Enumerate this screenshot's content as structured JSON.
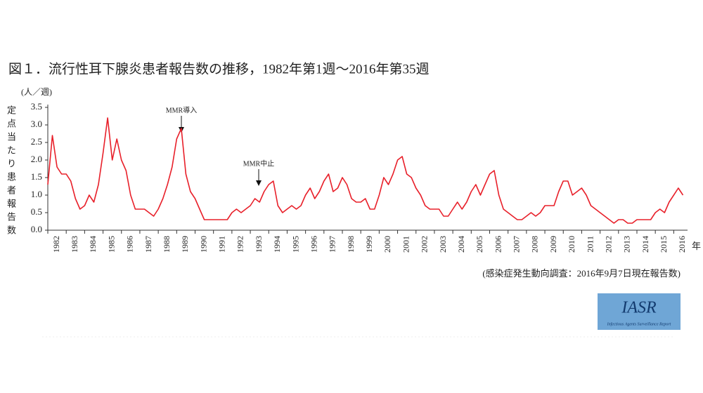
{
  "chart_data": {
    "type": "line",
    "title": "図１．流行性耳下腺炎患者報告数の推移，1982年第1週〜2016年第35週",
    "y_unit": "(人／週)",
    "y_label": "定点当たり患者報告数",
    "x_unit": "年",
    "source": "(感染症発生動向調査：2016年9月7日現在報告数)",
    "annotations": [
      "MMR導入",
      "MMR中止"
    ],
    "logo": "IASR",
    "logo_subtitle": "Infectious Agents Surveillance Report",
    "color": "#e8202a",
    "xlim": [
      1982,
      2016.75
    ],
    "xticks": [
      1982,
      1983,
      1984,
      1985,
      1986,
      1987,
      1988,
      1989,
      1990,
      1991,
      1992,
      1993,
      1994,
      1995,
      1996,
      1997,
      1998,
      1999,
      2000,
      2001,
      2002,
      2003,
      2004,
      2005,
      2006,
      2007,
      2008,
      2009,
      2010,
      2011,
      2012,
      2013,
      2014,
      2015,
      2016
    ],
    "ylim": [
      0,
      3.5
    ],
    "yticks": [
      {
        "value": 0,
        "label": "0.0"
      },
      0.5,
      {
        "value": 1,
        "label": "1.0"
      },
      1.5,
      {
        "value": 2,
        "label": "2.0"
      },
      2.5,
      {
        "value": 3,
        "label": "3.0"
      },
      3.5
    ],
    "x": [
      1982,
      1982.25,
      1982.5,
      1982.75,
      1983,
      1983.25,
      1983.5,
      1983.75,
      1984,
      1984.25,
      1984.5,
      1984.75,
      1985,
      1985.25,
      1985.5,
      1985.75,
      1986,
      1986.25,
      1986.5,
      1986.75,
      1987,
      1987.25,
      1987.5,
      1987.75,
      1988,
      1988.25,
      1988.5,
      1988.75,
      1989,
      1989.25,
      1989.5,
      1989.75,
      1990,
      1990.25,
      1990.5,
      1990.75,
      1991,
      1991.25,
      1991.5,
      1991.75,
      1992,
      1992.25,
      1992.5,
      1992.75,
      1993,
      1993.25,
      1993.5,
      1993.75,
      1994,
      1994.25,
      1994.5,
      1994.75,
      1995,
      1995.25,
      1995.5,
      1995.75,
      1996,
      1996.25,
      1996.5,
      1996.75,
      1997,
      1997.25,
      1997.5,
      1997.75,
      1998,
      1998.25,
      1998.5,
      1998.75,
      1999,
      1999.25,
      1999.5,
      1999.75,
      2000,
      2000.25,
      2000.5,
      2000.75,
      2001,
      2001.25,
      2001.5,
      2001.75,
      2002,
      2002.25,
      2002.5,
      2002.75,
      2003,
      2003.25,
      2003.5,
      2003.75,
      2004,
      2004.25,
      2004.5,
      2004.75,
      2005,
      2005.25,
      2005.5,
      2005.75,
      2006,
      2006.25,
      2006.5,
      2006.75,
      2007,
      2007.25,
      2007.5,
      2007.75,
      2008,
      2008.25,
      2008.5,
      2008.75,
      2009,
      2009.25,
      2009.5,
      2009.75,
      2010,
      2010.25,
      2010.5,
      2010.75,
      2011,
      2011.25,
      2011.5,
      2011.75,
      2012,
      2012.25,
      2012.5,
      2012.75,
      2013,
      2013.25,
      2013.5,
      2013.75,
      2014,
      2014.25,
      2014.5,
      2014.75,
      2015,
      2015.25,
      2015.5,
      2015.75,
      2016,
      2016.25,
      2016.5
    ],
    "values": [
      1.3,
      2.7,
      1.8,
      1.6,
      1.6,
      1.4,
      0.9,
      0.6,
      0.7,
      1.0,
      0.8,
      1.3,
      2.2,
      3.2,
      2.0,
      2.6,
      2.0,
      1.7,
      1.0,
      0.6,
      0.6,
      0.6,
      0.5,
      0.4,
      0.6,
      0.9,
      1.3,
      1.8,
      2.6,
      2.9,
      1.6,
      1.1,
      0.9,
      0.6,
      0.3,
      0.3,
      0.3,
      0.3,
      0.3,
      0.3,
      0.5,
      0.6,
      0.5,
      0.6,
      0.7,
      0.9,
      0.8,
      1.1,
      1.3,
      1.4,
      0.7,
      0.5,
      0.6,
      0.7,
      0.6,
      0.7,
      1.0,
      1.2,
      0.9,
      1.1,
      1.4,
      1.6,
      1.1,
      1.2,
      1.5,
      1.3,
      0.9,
      0.8,
      0.8,
      0.9,
      0.6,
      0.6,
      1.0,
      1.5,
      1.3,
      1.6,
      2.0,
      2.1,
      1.6,
      1.5,
      1.2,
      1.0,
      0.7,
      0.6,
      0.6,
      0.6,
      0.4,
      0.4,
      0.6,
      0.8,
      0.6,
      0.8,
      1.1,
      1.3,
      1.0,
      1.3,
      1.6,
      1.7,
      1.0,
      0.6,
      0.5,
      0.4,
      0.3,
      0.3,
      0.4,
      0.5,
      0.4,
      0.5,
      0.7,
      0.7,
      0.7,
      1.1,
      1.4,
      1.4,
      1.0,
      1.1,
      1.2,
      1.0,
      0.7,
      0.6,
      0.5,
      0.4,
      0.3,
      0.2,
      0.3,
      0.3,
      0.2,
      0.2,
      0.3,
      0.3,
      0.3,
      0.3,
      0.5,
      0.6,
      0.5,
      0.8,
      1.0,
      1.2,
      1.0
    ]
  }
}
